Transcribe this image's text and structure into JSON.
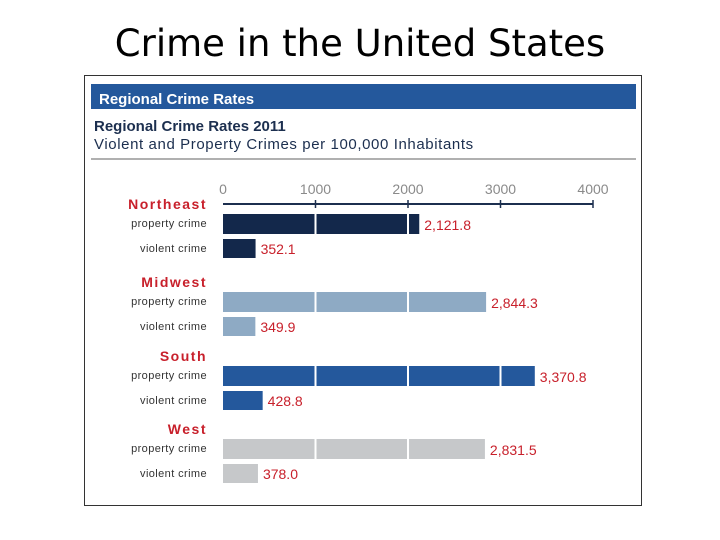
{
  "slide": {
    "title": "Crime in the United States"
  },
  "colors": {
    "header_bar": "#24589c",
    "value_label": "#c8202b",
    "region_label": "#c8202b",
    "northeast": "#13284b",
    "midwest": "#8eaac4",
    "south": "#24589c",
    "west": "#c6c8ca"
  },
  "chart_data": {
    "type": "bar",
    "orientation": "horizontal",
    "banner": "Regional Crime Rates",
    "title": "Regional Crime Rates 2011",
    "subtitle": "Violent and Property Crimes per 100,000 Inhabitants",
    "xlim": [
      0,
      4000
    ],
    "xticks": [
      "0",
      "1000",
      "2000",
      "3000",
      "4000"
    ],
    "grid": true,
    "groups": [
      {
        "region": "Northeast",
        "bars": [
          {
            "label": "property crime",
            "value": 2121.8,
            "display": "2,121.8"
          },
          {
            "label": "violent crime",
            "value": 352.1,
            "display": "352.1"
          }
        ]
      },
      {
        "region": "Midwest",
        "bars": [
          {
            "label": "property crime",
            "value": 2844.3,
            "display": "2,844.3"
          },
          {
            "label": "violent crime",
            "value": 349.9,
            "display": "349.9"
          }
        ]
      },
      {
        "region": "South",
        "bars": [
          {
            "label": "property crime",
            "value": 3370.8,
            "display": "3,370.8"
          },
          {
            "label": "violent crime",
            "value": 428.8,
            "display": "428.8"
          }
        ]
      },
      {
        "region": "West",
        "bars": [
          {
            "label": "property crime",
            "value": 2831.5,
            "display": "2,831.5"
          },
          {
            "label": "violent crime",
            "value": 378.0,
            "display": "378.0"
          }
        ]
      }
    ]
  }
}
